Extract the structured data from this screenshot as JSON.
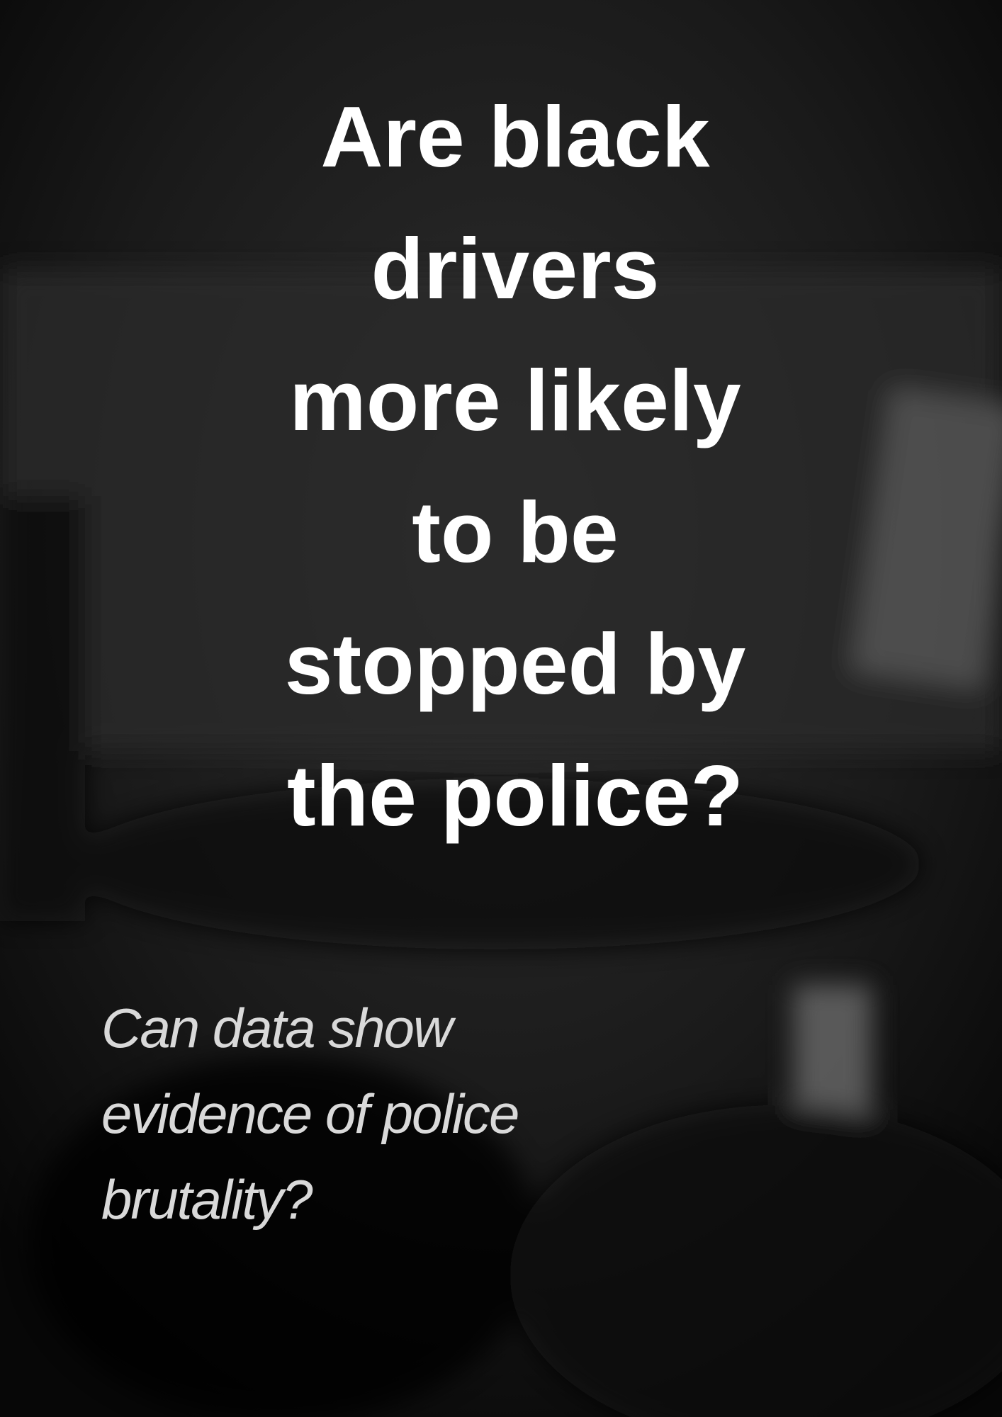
{
  "title": {
    "lines": [
      "Are black",
      "drivers",
      "more likely",
      "to be",
      "stopped by",
      "the police?"
    ]
  },
  "subtitle": {
    "lines": [
      "Can data show",
      "evidence of police",
      "brutality?"
    ]
  }
}
